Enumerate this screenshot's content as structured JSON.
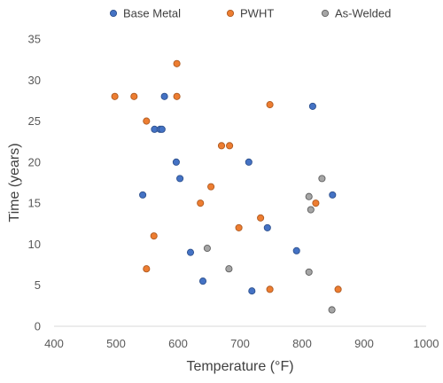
{
  "chart_data": {
    "type": "scatter",
    "title": "",
    "xlabel": "Temperature (°F)",
    "ylabel": "Time (years)",
    "xlim": [
      400,
      1000
    ],
    "ylim": [
      0,
      35
    ],
    "xticks": [
      400,
      500,
      600,
      700,
      800,
      900,
      1000
    ],
    "yticks": [
      0,
      5,
      10,
      15,
      20,
      25,
      30,
      35
    ],
    "grid": false,
    "legend_position": "top",
    "series": [
      {
        "name": "Base Metal",
        "color": "#4472c4",
        "points": [
          [
            562,
            24
          ],
          [
            571,
            24
          ],
          [
            574,
            24
          ],
          [
            578,
            28
          ],
          [
            597,
            20
          ],
          [
            603,
            18
          ],
          [
            543,
            16
          ],
          [
            620,
            9
          ],
          [
            640,
            5.5
          ],
          [
            714,
            20
          ],
          [
            744,
            12
          ],
          [
            719,
            4.3
          ],
          [
            791,
            9.2
          ],
          [
            817,
            26.8
          ],
          [
            849,
            16
          ]
        ]
      },
      {
        "name": "PWHT",
        "color": "#ed7d31",
        "points": [
          [
            498,
            28
          ],
          [
            529,
            28
          ],
          [
            598,
            32
          ],
          [
            598,
            28
          ],
          [
            549,
            25
          ],
          [
            748,
            27
          ],
          [
            670,
            22
          ],
          [
            683,
            22
          ],
          [
            653,
            17
          ],
          [
            636,
            15
          ],
          [
            561,
            11
          ],
          [
            549,
            7
          ],
          [
            698,
            12
          ],
          [
            733,
            13.2
          ],
          [
            822,
            15
          ],
          [
            748,
            4.5
          ],
          [
            858,
            4.5
          ]
        ]
      },
      {
        "name": "As-Welded",
        "color": "#a5a5a5",
        "points": [
          [
            832,
            18
          ],
          [
            811,
            15.8
          ],
          [
            814,
            14.2
          ],
          [
            647,
            9.5
          ],
          [
            682,
            7
          ],
          [
            811,
            6.6
          ],
          [
            848,
            2
          ]
        ]
      }
    ]
  }
}
